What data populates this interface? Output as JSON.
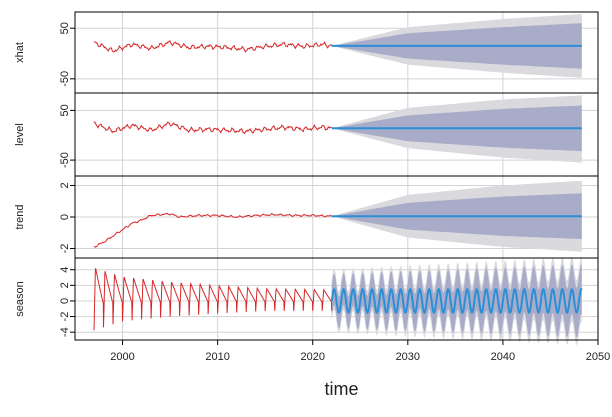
{
  "chart_data": {
    "type": "line",
    "description_of_panels": "stacked time-series panels sharing the x axis",
    "xlabel": "time",
    "xlim": [
      1995,
      2050
    ],
    "xticks": [
      2000,
      2010,
      2020,
      2030,
      2040,
      2050
    ],
    "observed_range": [
      1997,
      2022
    ],
    "forecast_range": [
      2022,
      2048.3
    ],
    "colors": {
      "observed": "#d62728",
      "forecast": "#2b8fd6",
      "band_outer": "#d9d9de",
      "band_inner": "#a9acc9",
      "grid": "#d3d3d3",
      "axis": "#000000"
    },
    "panels": [
      {
        "name": "xhat",
        "ylabel": "xhat",
        "ylim": [
          -78,
          82
        ],
        "yticks": [
          -50,
          50
        ],
        "series": [
          {
            "role": "observed",
            "x": [
              1997,
              1999,
              2001,
              2003,
              2005,
              2007,
              2009,
              2011,
              2013,
              2015,
              2017,
              2019,
              2021,
              2022
            ],
            "values": [
              22,
              5,
              18,
              10,
              22,
              12,
              14,
              12,
              8,
              14,
              18,
              14,
              18,
              15
            ]
          },
          {
            "role": "forecast",
            "x": [
              2022,
              2048.3
            ],
            "values": [
              15,
              15
            ]
          },
          {
            "role": "band_inner",
            "x": [
              2022,
              2030,
              2040,
              2048.3
            ],
            "upper": [
              15,
              40,
              52,
              60
            ],
            "lower": [
              15,
              -10,
              -22,
              -30
            ]
          },
          {
            "role": "band_outer",
            "x": [
              2022,
              2030,
              2040,
              2048.3
            ],
            "upper": [
              15,
              52,
              68,
              78
            ],
            "lower": [
              15,
              -22,
              -38,
              -48
            ]
          }
        ]
      },
      {
        "name": "level",
        "ylabel": "level",
        "ylim": [
          -82,
          85
        ],
        "yticks": [
          -50,
          50
        ],
        "series": [
          {
            "role": "observed",
            "x": [
              1997,
              1999,
              2001,
              2003,
              2005,
              2007,
              2009,
              2011,
              2013,
              2015,
              2017,
              2019,
              2021,
              2022
            ],
            "values": [
              24,
              8,
              20,
              10,
              24,
              10,
              12,
              10,
              8,
              12,
              16,
              12,
              16,
              14
            ]
          },
          {
            "role": "forecast",
            "x": [
              2022,
              2048.3
            ],
            "values": [
              14,
              14
            ]
          },
          {
            "role": "band_inner",
            "x": [
              2022,
              2030,
              2040,
              2048.3
            ],
            "upper": [
              14,
              40,
              53,
              60
            ],
            "lower": [
              14,
              -12,
              -25,
              -32
            ]
          },
          {
            "role": "band_outer",
            "x": [
              2022,
              2030,
              2040,
              2048.3
            ],
            "upper": [
              14,
              55,
              72,
              80
            ],
            "lower": [
              14,
              -26,
              -45,
              -55
            ]
          }
        ]
      },
      {
        "name": "trend",
        "ylabel": "trend",
        "ylim": [
          -2.6,
          2.6
        ],
        "yticks": [
          -2,
          0,
          2
        ],
        "series": [
          {
            "role": "observed",
            "x": [
              1997,
              1998,
              1999,
              2000,
              2001,
              2002,
              2003,
              2004,
              2005,
              2006,
              2008,
              2010,
              2012,
              2014,
              2016,
              2018,
              2020,
              2022
            ],
            "values": [
              -1.9,
              -1.6,
              -1.2,
              -0.8,
              -0.4,
              -0.2,
              0.1,
              0.15,
              0.2,
              0.0,
              0.1,
              0.1,
              0.0,
              0.1,
              0.15,
              0.1,
              0.1,
              0.05
            ]
          },
          {
            "role": "forecast",
            "x": [
              2022,
              2048.3
            ],
            "values": [
              0.05,
              0.05
            ]
          },
          {
            "role": "band_inner",
            "x": [
              2022,
              2030,
              2040,
              2048.3
            ],
            "upper": [
              0.05,
              0.9,
              1.3,
              1.5
            ],
            "lower": [
              0.05,
              -0.8,
              -1.2,
              -1.4
            ]
          },
          {
            "role": "band_outer",
            "x": [
              2022,
              2030,
              2040,
              2048.3
            ],
            "upper": [
              0.05,
              1.4,
              2.0,
              2.3
            ],
            "lower": [
              0.05,
              -1.3,
              -1.9,
              -2.2
            ]
          }
        ]
      },
      {
        "name": "season",
        "ylabel": "season",
        "ylim": [
          -5,
          5.5
        ],
        "yticks": [
          -4,
          -2,
          0,
          2,
          4
        ],
        "series": [
          {
            "role": "observed_amplitude",
            "x": [
              1997,
              2000,
              2005,
              2010,
              2015,
              2022
            ],
            "values": [
              4.5,
              3.2,
              2.5,
              2.0,
              1.6,
              1.5
            ]
          },
          {
            "role": "observed_center",
            "x": [
              1997,
              2022
            ],
            "values": [
              0.3,
              0.1
            ]
          },
          {
            "role": "forecast_amplitude",
            "x": [
              2022,
              2048.3
            ],
            "values": [
              1.5,
              1.5
            ]
          },
          {
            "role": "band_inner_halfwidth",
            "x": [
              2022,
              2048.3
            ],
            "values": [
              2.0,
              3.2
            ]
          },
          {
            "role": "band_outer_halfwidth",
            "x": [
              2022,
              2048.3
            ],
            "values": [
              2.6,
              4.2
            ]
          }
        ],
        "period_years": 1
      }
    ]
  }
}
